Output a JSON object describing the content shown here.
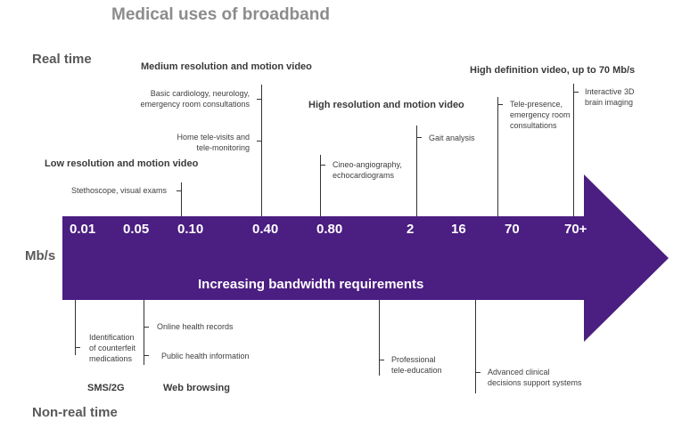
{
  "title": "Medical uses of broadband",
  "labels": {
    "real_time": "Real time",
    "non_real_time": "Non-real time",
    "unit": "Mb/s",
    "arrow_caption": "Increasing bandwidth requirements"
  },
  "colors": {
    "arrow": "#4b1e82",
    "arrow_text": "#ffffff",
    "lines": "#333333"
  },
  "ticks": [
    "0.01",
    "0.05",
    "0.10",
    "0.40",
    "0.80",
    "2",
    "16",
    "70",
    "70+"
  ],
  "real_time": {
    "low": {
      "title": "Low resolution and motion video",
      "items": [
        "Stethoscope, visual exams"
      ]
    },
    "medium": {
      "title": "Medium resolution and motion video",
      "items": [
        "Basic cardiology, neurology,\nemergency room consultations",
        "Home tele-visits and\ntele-monitoring"
      ]
    },
    "high": {
      "title": "High resolution and motion video",
      "items": [
        "Cineo-angiography,\nechocardiograms",
        "Gait analysis"
      ]
    },
    "hd": {
      "title": "High definition video, up to 70 Mb/s",
      "items": [
        "Tele-presence,\nemergency room\nconsultations",
        "Interactive 3D\nbrain imaging"
      ]
    }
  },
  "non_real_time": {
    "sms": {
      "title": "SMS/2G",
      "items": [
        "Identification\nof counterfeit\nmedications"
      ]
    },
    "web": {
      "title": "Web browsing",
      "items": [
        "Online health records",
        "Public health information"
      ]
    },
    "edu": {
      "items": [
        "Professional\ntele-education"
      ]
    },
    "clinical": {
      "items": [
        "Advanced clinical\ndecisions support systems"
      ]
    }
  }
}
